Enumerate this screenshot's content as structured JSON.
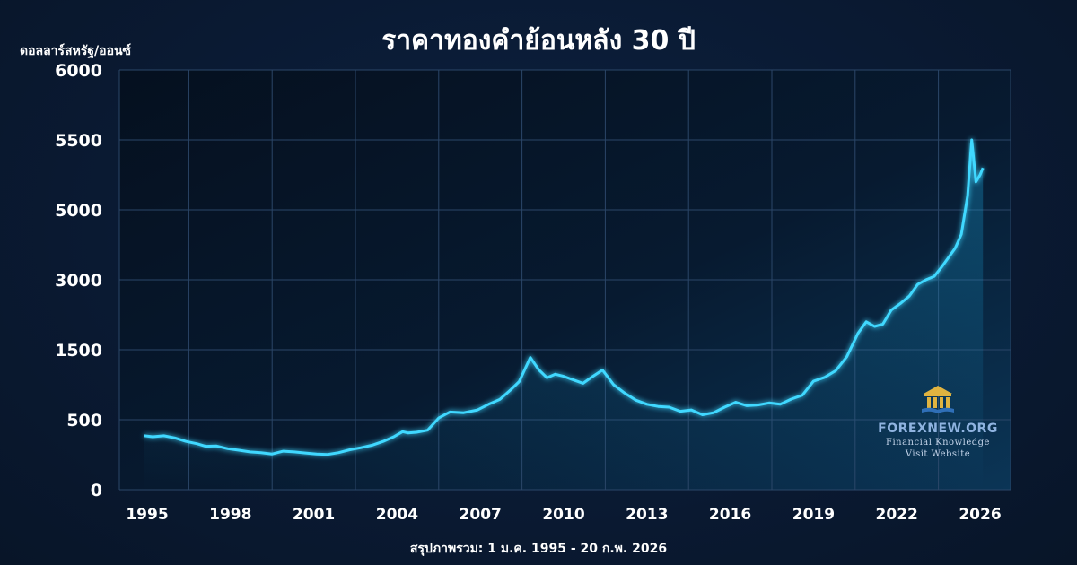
{
  "chart_data": {
    "type": "line",
    "title": "ราคาทองคำย้อนหลัง 30 ปี",
    "ylabel": "ดอลลาร์สหรัฐ/ออนซ์",
    "footer": "สรุปภาพรวม: 1 ม.ค. 1995 - 20 ก.พ. 2026",
    "y_ticks": [
      "0",
      "500",
      "1500",
      "3000",
      "5000",
      "5500",
      "6000"
    ],
    "x_ticks": [
      "1995",
      "1998",
      "2001",
      "2004",
      "2007",
      "2010",
      "2013",
      "2016",
      "2019",
      "2022",
      "2026"
    ],
    "grid": true,
    "line_color": "#3fd8ff",
    "series": [
      {
        "x": [
          1994.9,
          1995.2,
          1995.6,
          1996.0,
          1996.4,
          1996.8,
          1997.1,
          1997.5,
          1997.9,
          1998.3,
          1998.7,
          1999.1,
          1999.5,
          1999.9,
          2000.3,
          2000.7,
          2001.1,
          2001.5,
          2001.9,
          2002.3,
          2002.7,
          2003.1,
          2003.5,
          2003.9,
          2004.2,
          2004.4,
          2004.7,
          2005.1,
          2005.5,
          2005.9,
          2006.4,
          2006.9,
          2007.3,
          2007.7,
          2008.1,
          2008.4,
          2008.8,
          2009.1,
          2009.4,
          2009.7,
          2010.0,
          2010.3,
          2010.7,
          2011.0,
          2011.4,
          2011.8,
          2012.2,
          2012.6,
          2013.0,
          2013.4,
          2013.8,
          2014.2,
          2014.6,
          2015.0,
          2015.4,
          2015.8,
          2016.2,
          2016.6,
          2017.0,
          2017.4,
          2017.8,
          2018.2,
          2018.6,
          2019.0,
          2019.4,
          2019.8,
          2020.2,
          2020.6,
          2020.9,
          2021.2,
          2021.5,
          2021.8,
          2022.2,
          2022.6,
          2023.0,
          2023.4,
          2023.8,
          2024.2,
          2024.5,
          2024.8,
          2025.1,
          2025.4,
          2025.6,
          2025.8,
          2026.0,
          2026.14
        ],
        "y": [
          385,
          378,
          385,
          370,
          345,
          328,
          310,
          312,
          293,
          282,
          270,
          265,
          255,
          275,
          270,
          262,
          255,
          252,
          265,
          285,
          300,
          318,
          345,
          380,
          415,
          405,
          410,
          425,
          525,
          610,
          600,
          640,
          720,
          790,
          930,
          1045,
          1390,
          1215,
          1100,
          1150,
          1120,
          1075,
          1020,
          1105,
          1210,
          1000,
          880,
          780,
          720,
          690,
          680,
          620,
          640,
          570,
          600,
          680,
          750,
          700,
          710,
          740,
          720,
          795,
          850,
          1050,
          1105,
          1200,
          1400,
          1850,
          2100,
          2000,
          2050,
          2350,
          2500,
          2650,
          2900,
          3000,
          3100,
          3400,
          3650,
          3900,
          4300,
          5100,
          5500,
          5200,
          5250,
          5300
        ]
      }
    ]
  }
}
